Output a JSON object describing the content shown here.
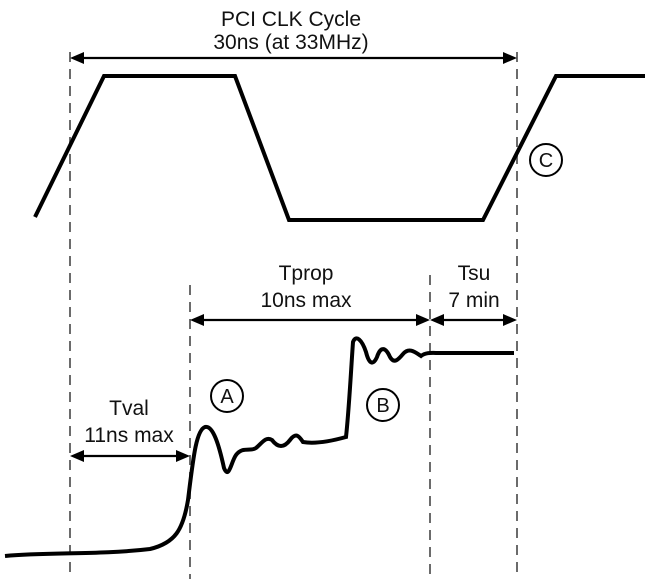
{
  "diagram": {
    "cycle": {
      "title": "PCI CLK Cycle",
      "subtitle": "30ns (at 33MHz)"
    },
    "tprop": {
      "label": "Tprop",
      "value": "10ns max"
    },
    "tsu": {
      "label": "Tsu",
      "value": "7 min"
    },
    "tval": {
      "label": "Tval",
      "value": "11ns max"
    },
    "markers": {
      "a": "A",
      "b": "B",
      "c": "C"
    }
  }
}
